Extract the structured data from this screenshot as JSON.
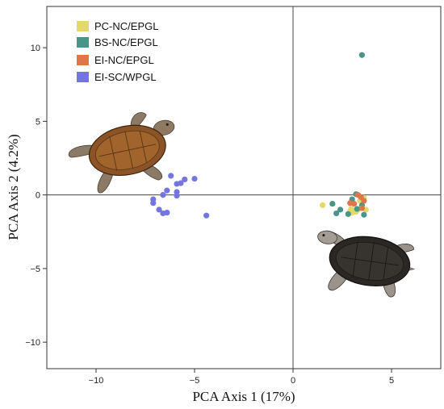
{
  "chart_data": {
    "type": "scatter",
    "xlabel": "PCA Axis 1 (17%)",
    "ylabel": "PCA Axis 2 (4.2%)",
    "xlim": [
      -12.5,
      7.5
    ],
    "ylim": [
      -11.8,
      12.8
    ],
    "x_ticks": [
      -10,
      -5,
      0,
      5
    ],
    "y_ticks": [
      -10,
      -5,
      0,
      5,
      10
    ],
    "x_tick_labels": [
      "−10",
      "−5",
      "0",
      "5"
    ],
    "y_tick_labels": [
      "−10",
      "−5",
      "0",
      "5",
      "10"
    ],
    "zero_lines": true,
    "grid": false,
    "legend_position": "top-left",
    "series": [
      {
        "name": "PC-NC/EPGL",
        "color": "#e3d96a",
        "points": [
          [
            1.5,
            -0.7
          ],
          [
            2.9,
            -1.1
          ],
          [
            3.0,
            -1.2
          ],
          [
            3.2,
            -1.15
          ],
          [
            3.1,
            -1.05
          ],
          [
            3.3,
            -1.0
          ],
          [
            3.6,
            -0.2
          ],
          [
            3.7,
            -1.0
          ],
          [
            3.4,
            -0.4
          ],
          [
            2.95,
            -0.95
          ]
        ]
      },
      {
        "name": "BS-NC/EPGL",
        "color": "#4a9488",
        "points": [
          [
            3.5,
            9.5
          ],
          [
            2.0,
            -0.6
          ],
          [
            2.4,
            -1.0
          ],
          [
            2.8,
            -1.3
          ],
          [
            3.0,
            -0.3
          ],
          [
            3.25,
            -0.95
          ],
          [
            3.5,
            -0.7
          ],
          [
            3.6,
            -1.35
          ],
          [
            3.2,
            0.05
          ],
          [
            2.2,
            -1.25
          ]
        ]
      },
      {
        "name": "EI-NC/EPGL",
        "color": "#e0744a",
        "points": [
          [
            3.3,
            0.0
          ],
          [
            3.1,
            -0.6
          ],
          [
            3.5,
            -0.9
          ],
          [
            3.6,
            -0.4
          ],
          [
            2.9,
            -0.55
          ],
          [
            3.45,
            -0.15
          ]
        ]
      },
      {
        "name": "EI-SC/WPGL",
        "color": "#7575e0",
        "points": [
          [
            -6.2,
            1.3
          ],
          [
            -5.5,
            1.05
          ],
          [
            -5.0,
            1.1
          ],
          [
            -5.7,
            0.8
          ],
          [
            -5.9,
            0.75
          ],
          [
            -6.4,
            0.3
          ],
          [
            -5.9,
            0.2
          ],
          [
            -5.9,
            -0.05
          ],
          [
            -7.1,
            -0.3
          ],
          [
            -7.1,
            -0.55
          ],
          [
            -6.8,
            -1.0
          ],
          [
            -6.4,
            -1.2
          ],
          [
            -6.6,
            -1.25
          ],
          [
            -4.4,
            -1.4
          ],
          [
            -6.6,
            0.0
          ]
        ]
      }
    ]
  },
  "legend": {
    "items": [
      {
        "label": "PC-NC/EPGL",
        "color": "#e3d96a"
      },
      {
        "label": "BS-NC/EPGL",
        "color": "#4a9488"
      },
      {
        "label": "EI-NC/EPGL",
        "color": "#e0744a"
      },
      {
        "label": "EI-SC/WPGL",
        "color": "#7575e0"
      }
    ]
  },
  "illustrations": {
    "upper_left": "loggerhead-turtle-icon",
    "lower_right": "black-sea-turtle-icon"
  }
}
